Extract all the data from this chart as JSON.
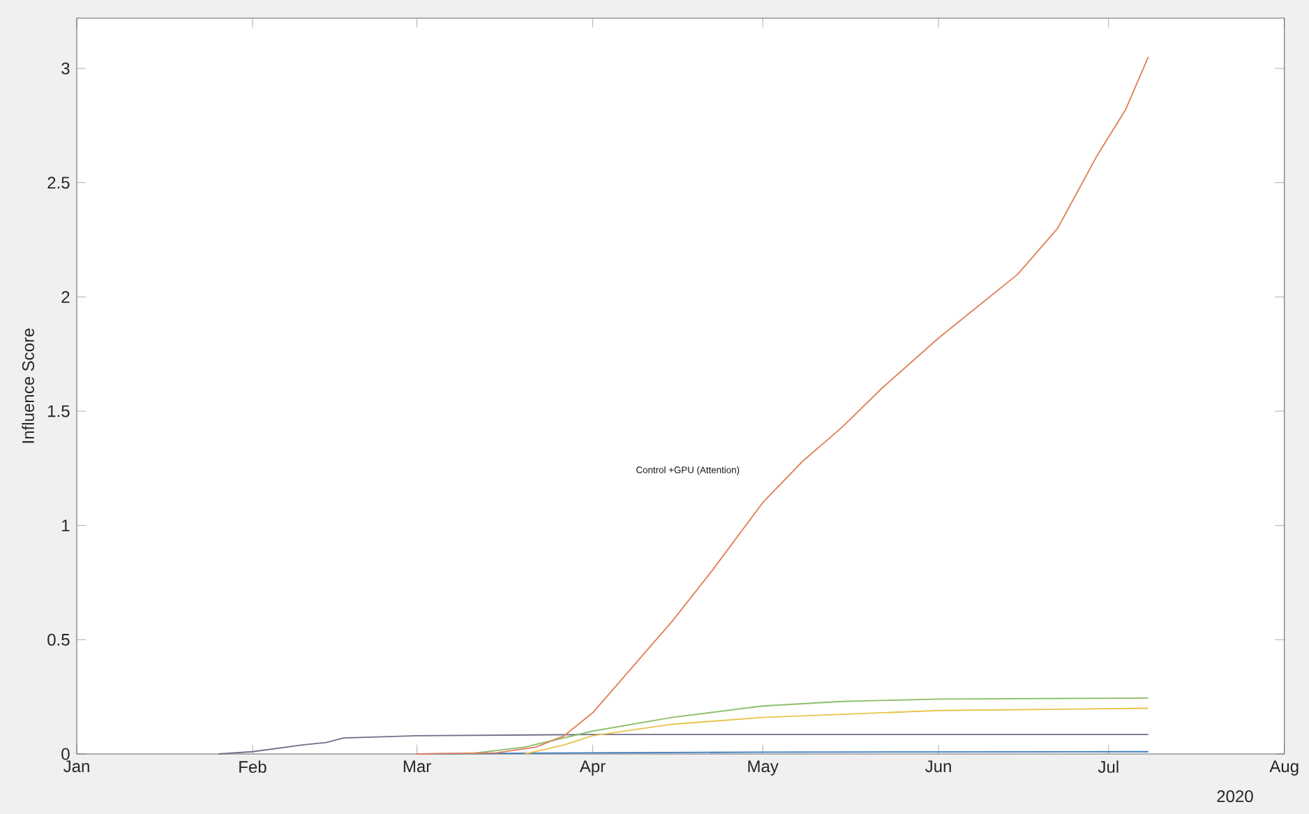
{
  "chart_data": {
    "type": "line",
    "ylabel": "Influence Score",
    "xlim": [
      "2020-01-01",
      "2020-08-01"
    ],
    "xticks": [
      {
        "value": "2020-01-01",
        "label": "Jan"
      },
      {
        "value": "2020-02-01",
        "label": "Feb"
      },
      {
        "value": "2020-03-01",
        "label": "Mar"
      },
      {
        "value": "2020-04-01",
        "label": "Apr"
      },
      {
        "value": "2020-05-01",
        "label": "May"
      },
      {
        "value": "2020-06-01",
        "label": "Jun"
      },
      {
        "value": "2020-07-01",
        "label": "Jul"
      },
      {
        "value": "2020-08-01",
        "label": "Aug"
      }
    ],
    "ylim": [
      0,
      3.22
    ],
    "yticks": [
      0,
      0.5,
      1,
      1.5,
      2,
      2.5,
      3
    ],
    "marker": "none",
    "line_style": "solid",
    "series": [
      {
        "color": "#6f6f8a",
        "x": [
          "2020-01-26",
          "2020-02-01",
          "2020-02-10",
          "2020-02-14",
          "2020-02-17",
          "2020-03-01",
          "2020-04-01",
          "2020-07-08"
        ],
        "values": [
          0,
          0.01,
          0.04,
          0.05,
          0.07,
          0.08,
          0.085,
          0.085
        ]
      },
      {
        "color": "#3a7cc0",
        "x": [
          "2020-03-01",
          "2020-04-01",
          "2020-05-01",
          "2020-07-08"
        ],
        "values": [
          0,
          0.005,
          0.008,
          0.01
        ]
      },
      {
        "color": "#8cbf6a",
        "x": [
          "2020-03-10",
          "2020-03-20",
          "2020-04-01",
          "2020-04-15",
          "2020-05-01",
          "2020-05-15",
          "2020-06-01",
          "2020-07-08"
        ],
        "values": [
          0,
          0.03,
          0.1,
          0.16,
          0.21,
          0.23,
          0.24,
          0.245
        ]
      },
      {
        "color": "#e8c34a",
        "x": [
          "2020-03-20",
          "2020-03-27",
          "2020-04-01",
          "2020-04-15",
          "2020-05-01",
          "2020-06-01",
          "2020-07-08"
        ],
        "values": [
          0,
          0.04,
          0.08,
          0.13,
          0.16,
          0.19,
          0.2
        ]
      },
      {
        "color": "#e0805a",
        "x": [
          "2020-03-01",
          "2020-03-15",
          "2020-03-22",
          "2020-03-27",
          "2020-04-01",
          "2020-04-08",
          "2020-04-15",
          "2020-04-22",
          "2020-05-01",
          "2020-05-08",
          "2020-05-15",
          "2020-05-22",
          "2020-06-01",
          "2020-06-08",
          "2020-06-15",
          "2020-06-22",
          "2020-06-29",
          "2020-07-04",
          "2020-07-08"
        ],
        "values": [
          0,
          0.005,
          0.03,
          0.08,
          0.18,
          0.38,
          0.58,
          0.8,
          1.1,
          1.28,
          1.43,
          1.6,
          1.82,
          1.96,
          2.1,
          2.3,
          2.62,
          2.82,
          3.05
        ]
      }
    ],
    "annotations": [
      "Control +GPU (Attention)",
      "2020"
    ]
  }
}
